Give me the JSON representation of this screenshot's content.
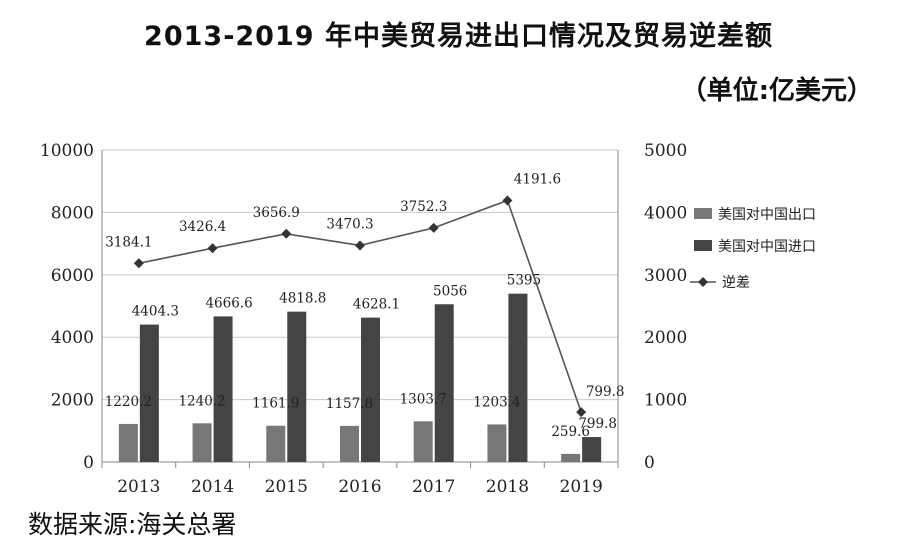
{
  "title": "2013-2019 年中美贸易进出口情况及贸易逆差额",
  "unit": "（单位:亿美元）",
  "source": "数据来源:海关总署",
  "chart_data": {
    "type": "bar",
    "categories": [
      "2013",
      "2014",
      "2015",
      "2016",
      "2017",
      "2018",
      "2019"
    ],
    "y_left": {
      "min": 0,
      "max": 10000,
      "ticks": [
        "0",
        "2000",
        "4000",
        "6000",
        "8000",
        "10000"
      ]
    },
    "y_right": {
      "min": 0,
      "max": 5000,
      "ticks": [
        "0",
        "1000",
        "2000",
        "3000",
        "4000",
        "5000"
      ]
    },
    "grid": true,
    "legend_position": "right",
    "series": [
      {
        "name": "美国对中国出口",
        "kind": "bar",
        "axis": "left",
        "color": "#777777",
        "values": [
          1220.2,
          1240.2,
          1161.9,
          1157.8,
          1303.7,
          1203.4,
          259.6
        ],
        "labels": [
          "1220.2",
          "1240.2",
          "1161.9",
          "1157.8",
          "1303.7",
          "1203.4",
          "259.6"
        ]
      },
      {
        "name": "美国对中国进口",
        "kind": "bar",
        "axis": "left",
        "color": "#444444",
        "values": [
          4404.3,
          4666.6,
          4818.8,
          4628.1,
          5056,
          5395,
          799.8
        ],
        "labels": [
          "4404.3",
          "4666.6",
          "4818.8",
          "4628.1",
          "5056",
          "5395",
          "799.8"
        ]
      },
      {
        "name": "逆差",
        "kind": "line",
        "axis": "right",
        "color": "#555555",
        "values": [
          3184.1,
          3426.4,
          3656.9,
          3470.3,
          3752.3,
          4191.6,
          799.8
        ],
        "labels": [
          "3184.1",
          "3426.4",
          "3656.9",
          "3470.3",
          "3752.3",
          "4191.6",
          "799.8"
        ]
      }
    ]
  }
}
